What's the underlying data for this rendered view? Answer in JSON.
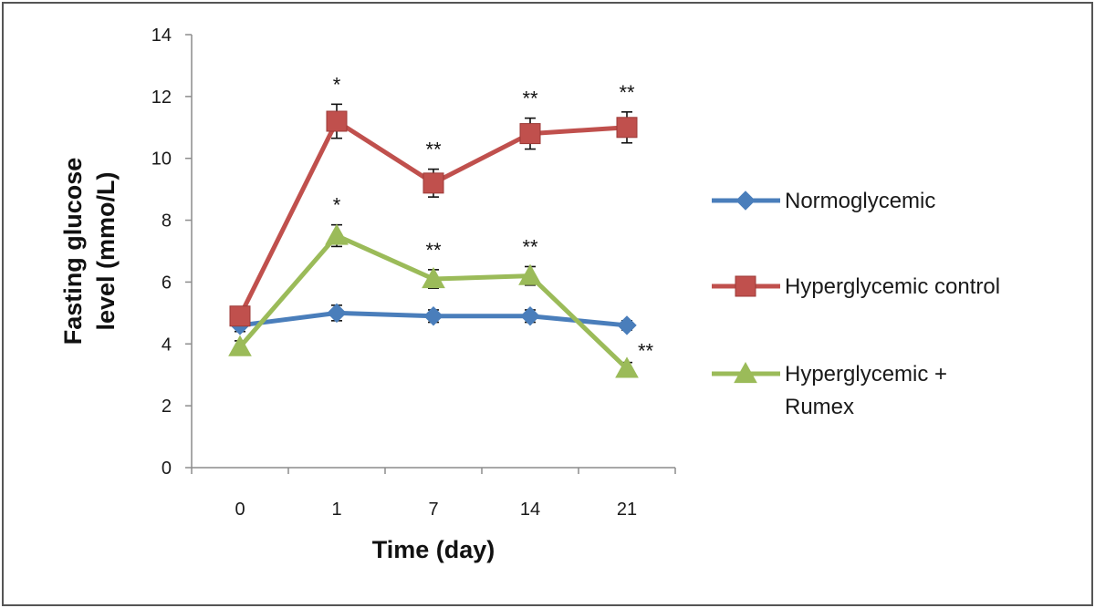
{
  "chart_data": {
    "type": "line",
    "title": "",
    "xlabel": "Time (day)",
    "ylabel_lines": [
      "Fasting glucose",
      "level (mmo/L)"
    ],
    "categories": [
      "0",
      "1",
      "7",
      "14",
      "21"
    ],
    "ylim": [
      0,
      14
    ],
    "yticks": [
      0,
      2,
      4,
      6,
      8,
      10,
      12,
      14
    ],
    "grid": false,
    "legend_position": "right",
    "series": [
      {
        "name": "Normoglycemic",
        "legend_lines": [
          "Normoglycemic"
        ],
        "color": "#4a7ebb",
        "marker": "diamond",
        "values": [
          4.6,
          5.0,
          4.9,
          4.9,
          4.6
        ],
        "errors": [
          0.2,
          0.25,
          0.2,
          0.2,
          0.15
        ],
        "annotations": [
          "",
          "",
          "",
          "",
          ""
        ]
      },
      {
        "name": "Hyperglycemic control",
        "legend_lines": [
          "Hyperglycemic control"
        ],
        "color": "#c0504d",
        "marker": "square",
        "values": [
          4.9,
          11.2,
          9.2,
          10.8,
          11.0
        ],
        "errors": [
          0.2,
          0.55,
          0.45,
          0.5,
          0.5
        ],
        "annotations": [
          "",
          "*",
          "**",
          "**",
          "**"
        ]
      },
      {
        "name": "Hyperglycemic + Rumex",
        "legend_lines": [
          "Hyperglycemic +",
          "Rumex"
        ],
        "color": "#9bbb59",
        "marker": "triangle",
        "values": [
          3.9,
          7.5,
          6.1,
          6.2,
          3.2
        ],
        "errors": [
          0.2,
          0.35,
          0.3,
          0.3,
          0.2
        ],
        "annotations": [
          "",
          "*",
          "**",
          "**",
          "**"
        ]
      }
    ]
  }
}
